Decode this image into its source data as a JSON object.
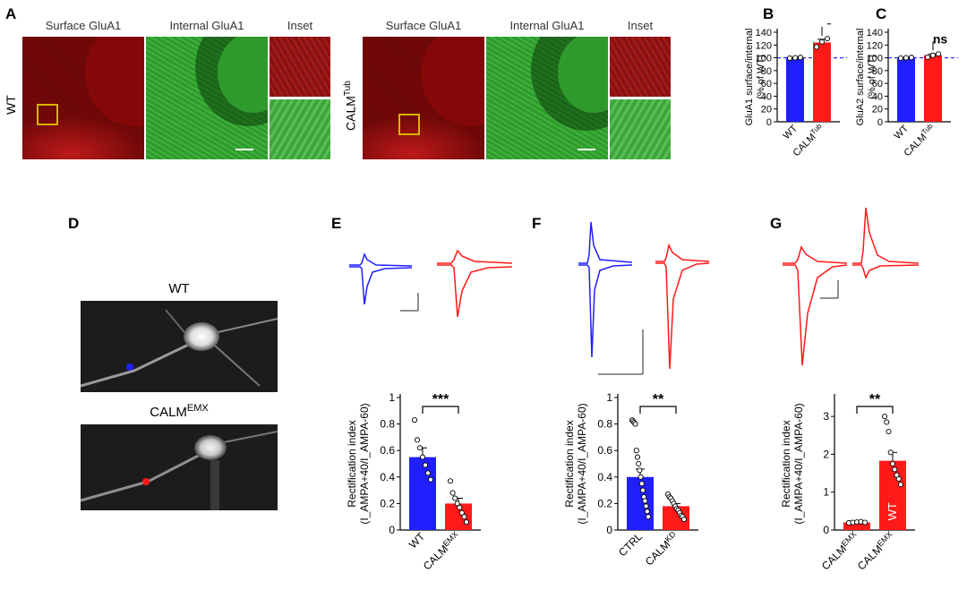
{
  "panels": {
    "A": {
      "label": "A",
      "col_titles_left": [
        "Surface GluA1",
        "Internal GluA1",
        "Inset"
      ],
      "col_titles_right": [
        "Surface GluA1",
        "Internal GluA1",
        "Inset"
      ],
      "row_label_left": "WT",
      "row_label_right_base": "CALM",
      "row_label_right_sup": "Tub"
    },
    "B": {
      "label": "B"
    },
    "C": {
      "label": "C"
    },
    "D": {
      "label": "D",
      "top_label": "WT",
      "bottom_label_base": "CALM",
      "bottom_label_sup": "EMX"
    },
    "E": {
      "label": "E"
    },
    "F": {
      "label": "F"
    },
    "G": {
      "label": "G"
    }
  },
  "chart_data": [
    {
      "id": "B",
      "type": "bar",
      "ylabel_lines": [
        "GluA1 surface/internal",
        "(% of WT)"
      ],
      "categories": [
        {
          "base": "WT",
          "sup": ""
        },
        {
          "base": "CALM",
          "sup": "Tub"
        }
      ],
      "values": [
        100,
        124
      ],
      "errors": [
        0,
        5
      ],
      "points": [
        [
          99.5,
          100,
          100.5
        ],
        [
          117,
          125,
          130
        ]
      ],
      "colors": [
        "#1f1fff",
        "#ff1a1a"
      ],
      "ylim": [
        0,
        140
      ],
      "yticks": [
        0,
        20,
        40,
        60,
        80,
        100,
        120,
        140
      ],
      "reference_line": 100,
      "significance": "*"
    },
    {
      "id": "C",
      "type": "bar",
      "ylabel_lines": [
        "GluA2 surface/internal",
        "(% of WT)"
      ],
      "categories": [
        {
          "base": "WT",
          "sup": ""
        },
        {
          "base": "CALM",
          "sup": "Tub"
        }
      ],
      "values": [
        100,
        104
      ],
      "errors": [
        0,
        2
      ],
      "points": [
        [
          99.5,
          100,
          100.5
        ],
        [
          101,
          104,
          106
        ]
      ],
      "colors": [
        "#1f1fff",
        "#ff1a1a"
      ],
      "ylim": [
        0,
        140
      ],
      "yticks": [
        0,
        20,
        40,
        60,
        80,
        100,
        120,
        140
      ],
      "reference_line": 100,
      "significance": "ns"
    },
    {
      "id": "E",
      "type": "bar",
      "ylabel_lines": [
        "Rectification index",
        "(I_AMPA+40/I_AMPA-60)"
      ],
      "categories": [
        {
          "base": "WT",
          "sup": ""
        },
        {
          "base": "CALM",
          "sup": "EMX"
        }
      ],
      "values": [
        0.55,
        0.2
      ],
      "errors": [
        0.07,
        0.04
      ],
      "points": [
        [
          0.83,
          0.68,
          0.62,
          0.55,
          0.49,
          0.43,
          0.38
        ],
        [
          0.37,
          0.28,
          0.24,
          0.2,
          0.17,
          0.13,
          0.1,
          0.06
        ]
      ],
      "colors": [
        "#1f1fff",
        "#ff1a1a"
      ],
      "ylim": [
        0,
        1.0
      ],
      "yticks": [
        0,
        0.2,
        0.4,
        0.6,
        0.8,
        1.0
      ],
      "significance": "***"
    },
    {
      "id": "F",
      "type": "bar",
      "ylabel_lines": [
        "Rectification index",
        "(I_AMPA+40/I_AMPA-60)"
      ],
      "categories": [
        {
          "base": "CTRL",
          "sup": ""
        },
        {
          "base": "CALM",
          "sup": "KD"
        }
      ],
      "values": [
        0.4,
        0.18
      ],
      "errors": [
        0.06,
        0.02
      ],
      "points": [
        [
          0.83,
          0.82,
          0.81,
          0.8,
          0.6,
          0.55,
          0.5,
          0.45,
          0.4,
          0.35,
          0.3,
          0.25,
          0.22,
          0.18,
          0.14,
          0.1
        ],
        [
          0.27,
          0.25,
          0.24,
          0.22,
          0.2,
          0.18,
          0.16,
          0.15,
          0.13,
          0.11,
          0.1,
          0.08
        ]
      ],
      "colors": [
        "#1f1fff",
        "#ff1a1a"
      ],
      "ylim": [
        0,
        1.0
      ],
      "yticks": [
        0,
        0.2,
        0.4,
        0.6,
        0.8,
        1.0
      ],
      "significance": "**"
    },
    {
      "id": "G",
      "type": "bar",
      "ylabel_lines": [
        "Rectification index",
        "(I_AMPA+40/I_AMPA-60)"
      ],
      "categories": [
        {
          "base": "CALM",
          "sup": "EMX"
        },
        {
          "base": "CALM",
          "sup": "EMX"
        }
      ],
      "bar_label": "WT",
      "values": [
        0.2,
        1.83
      ],
      "errors": [
        0.03,
        0.22
      ],
      "points": [
        [
          0.19,
          0.2,
          0.21,
          0.22,
          0.2
        ],
        [
          3.0,
          2.85,
          2.6,
          2.05,
          1.75,
          1.6,
          1.45,
          1.35,
          1.2
        ]
      ],
      "colors": [
        "#ff1a1a",
        "#ff1a1a"
      ],
      "ylim": [
        0,
        3.5
      ],
      "yticks": [
        0,
        1,
        2,
        3
      ],
      "significance": "**"
    }
  ]
}
